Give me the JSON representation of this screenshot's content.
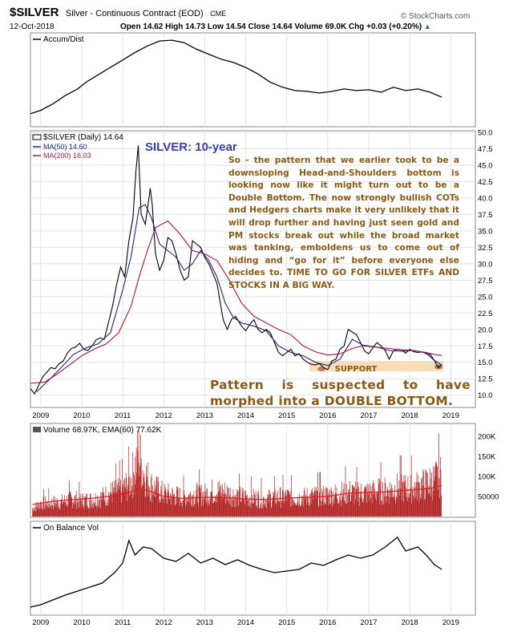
{
  "header": {
    "symbol": "$SILVER",
    "name": "Silver - Continuous Contract (EOD)",
    "exchange": "CME",
    "date": "12-Oct-2018",
    "quote": "Open 14.62  High 14.73  Low 14.54  Close 14.64  Volume 69.0K  Chg +0.03 (+0.20%)",
    "quote_arrow": "▲",
    "brand": "© StockCharts.com"
  },
  "annotations": {
    "title": "SILVER: 10-year",
    "commentary": "So - the pattern that we earlier took to be a downsloping Head-and-Shoulders bottom is looking now like it might turn out to be a Double Bottom. The now strongly bullish COTs and Hedgers charts make it very unlikely that it will drop further and having just seen gold and PM stocks break out while the broad market was tanking, emboldens us to come out of hiding and “go for it” before everyone else decides to. TIME TO GO FOR SILVER ETFs AND STOCKS IN A BIG WAY.",
    "support_label": "SUPPORT",
    "pattern_text": "Pattern is suspected to have morphed into a DOUBLE BOTTOM."
  },
  "colors": {
    "price": "#000000",
    "ma50": "#1a237e",
    "ma200": "#b0123a",
    "volume_bar": "#b22222",
    "volume_ema": "#e31a1c",
    "support_band": "#f7deb8",
    "annotation_text": "#8a5a14",
    "title_text": "#3b3fa8",
    "grid": "#e3e3e3",
    "panel_border": "#888888"
  },
  "chart_data": [
    {
      "panel": "accum-dist",
      "type": "line",
      "label": "Accum/Dist",
      "x": [
        2008.75,
        2009.0,
        2009.3,
        2009.6,
        2009.9,
        2010.1,
        2010.4,
        2010.7,
        2011.0,
        2011.3,
        2011.6,
        2011.9,
        2012.2,
        2012.5,
        2012.8,
        2013.1,
        2013.4,
        2013.7,
        2014.0,
        2014.3,
        2014.6,
        2014.9,
        2015.2,
        2015.5,
        2015.8,
        2016.1,
        2016.4,
        2016.7,
        2017.0,
        2017.3,
        2017.6,
        2017.9,
        2018.2,
        2018.5,
        2018.78
      ],
      "values": [
        8,
        12,
        20,
        30,
        38,
        46,
        55,
        64,
        73,
        82,
        90,
        96,
        97,
        94,
        86,
        80,
        74,
        70,
        64,
        56,
        46,
        40,
        36,
        35,
        33,
        35,
        38,
        36,
        37,
        34,
        40,
        36,
        38,
        34,
        28
      ]
    },
    {
      "panel": "price",
      "type": "line",
      "label": "$SILVER (Daily) 14.64",
      "ylim": [
        8.5,
        50
      ],
      "yticks": [
        10.0,
        12.5,
        15.0,
        17.5,
        20.0,
        22.5,
        25.0,
        27.5,
        30.0,
        32.5,
        35.0,
        37.5,
        40.0,
        42.5,
        45.0,
        47.5,
        50.0
      ],
      "xticks": [
        "2009",
        "2010",
        "2011",
        "2012",
        "2013",
        "2014",
        "2015",
        "2016",
        "2017",
        "2018",
        "2019"
      ],
      "support_zone": [
        13.6,
        15.2
      ],
      "series": [
        {
          "name": "$SILVER (Daily) 14.64",
          "x": [
            2008.75,
            2008.85,
            2008.95,
            2009.05,
            2009.15,
            2009.25,
            2009.35,
            2009.45,
            2009.55,
            2009.65,
            2009.75,
            2009.85,
            2009.95,
            2010.05,
            2010.15,
            2010.25,
            2010.35,
            2010.45,
            2010.55,
            2010.65,
            2010.75,
            2010.85,
            2010.95,
            2011.05,
            2011.15,
            2011.25,
            2011.32,
            2011.38,
            2011.45,
            2011.55,
            2011.62,
            2011.67,
            2011.72,
            2011.8,
            2011.9,
            2012.0,
            2012.1,
            2012.2,
            2012.3,
            2012.4,
            2012.5,
            2012.6,
            2012.7,
            2012.8,
            2012.9,
            2013.0,
            2013.1,
            2013.2,
            2013.3,
            2013.45,
            2013.55,
            2013.65,
            2013.75,
            2013.9,
            2014.0,
            2014.1,
            2014.2,
            2014.3,
            2014.4,
            2014.5,
            2014.6,
            2014.7,
            2014.8,
            2014.9,
            2015.0,
            2015.1,
            2015.2,
            2015.3,
            2015.4,
            2015.5,
            2015.6,
            2015.7,
            2015.8,
            2015.9,
            2016.0,
            2016.1,
            2016.2,
            2016.3,
            2016.4,
            2016.5,
            2016.6,
            2016.7,
            2016.8,
            2016.9,
            2017.0,
            2017.1,
            2017.2,
            2017.3,
            2017.4,
            2017.5,
            2017.6,
            2017.7,
            2017.8,
            2017.9,
            2018.0,
            2018.1,
            2018.2,
            2018.3,
            2018.4,
            2018.5,
            2018.6,
            2018.65,
            2018.7,
            2018.78
          ],
          "values": [
            11.0,
            10.2,
            11.5,
            12.8,
            13.5,
            14.2,
            14.0,
            14.8,
            15.2,
            16.4,
            17.1,
            17.3,
            17.9,
            17.0,
            16.8,
            17.5,
            18.4,
            18.7,
            18.5,
            21.0,
            23.5,
            26.8,
            29.5,
            28.0,
            33.5,
            37.0,
            44.0,
            48.0,
            37.5,
            36.0,
            39.0,
            41.5,
            39.0,
            31.5,
            29.0,
            30.5,
            34.0,
            33.5,
            31.5,
            29.0,
            27.5,
            28.0,
            33.5,
            33.0,
            32.5,
            31.0,
            30.0,
            28.5,
            27.0,
            21.5,
            20.0,
            21.5,
            22.0,
            20.5,
            19.8,
            20.8,
            21.5,
            20.0,
            19.5,
            20.0,
            19.5,
            18.0,
            16.5,
            16.0,
            16.5,
            17.0,
            16.0,
            16.3,
            15.5,
            15.0,
            14.7,
            14.6,
            14.8,
            14.2,
            13.9,
            15.2,
            15.5,
            17.0,
            17.5,
            20.0,
            19.6,
            19.2,
            18.0,
            16.7,
            16.3,
            17.2,
            18.0,
            17.5,
            16.8,
            15.5,
            16.7,
            17.0,
            16.9,
            16.4,
            17.0,
            16.6,
            16.5,
            16.6,
            16.3,
            16.2,
            15.3,
            14.7,
            14.2,
            14.64
          ]
        },
        {
          "name": "MA(50) 14.60",
          "x": [
            2008.9,
            2009.2,
            2009.5,
            2009.8,
            2010.1,
            2010.4,
            2010.7,
            2011.0,
            2011.2,
            2011.4,
            2011.55,
            2011.7,
            2011.9,
            2012.1,
            2012.3,
            2012.5,
            2012.7,
            2012.9,
            2013.1,
            2013.3,
            2013.5,
            2013.7,
            2013.9,
            2014.2,
            2014.5,
            2014.8,
            2015.1,
            2015.4,
            2015.7,
            2016.0,
            2016.3,
            2016.6,
            2016.9,
            2017.2,
            2017.5,
            2017.8,
            2018.1,
            2018.4,
            2018.6,
            2018.78
          ],
          "values": [
            10.5,
            12.3,
            14.2,
            16.2,
            17.2,
            17.8,
            19.5,
            26.0,
            31.0,
            38.5,
            39.0,
            37.0,
            33.0,
            32.0,
            31.0,
            29.0,
            30.0,
            32.0,
            30.5,
            28.0,
            24.0,
            21.8,
            21.0,
            20.5,
            19.8,
            17.5,
            16.5,
            16.0,
            15.0,
            14.5,
            15.5,
            18.5,
            17.5,
            17.3,
            16.8,
            16.7,
            16.8,
            16.4,
            15.3,
            14.6
          ]
        },
        {
          "name": "MA(200) 16.03",
          "x": [
            2008.75,
            2009.1,
            2009.4,
            2009.7,
            2010.0,
            2010.3,
            2010.6,
            2010.9,
            2011.2,
            2011.4,
            2011.6,
            2011.8,
            2012.1,
            2012.4,
            2012.7,
            2013.0,
            2013.3,
            2013.6,
            2013.9,
            2014.2,
            2014.5,
            2014.8,
            2015.1,
            2015.4,
            2015.7,
            2016.0,
            2016.3,
            2016.6,
            2016.9,
            2017.2,
            2017.5,
            2017.8,
            2018.1,
            2018.4,
            2018.6,
            2018.78
          ],
          "values": [
            11.8,
            12.0,
            13.2,
            14.6,
            16.0,
            17.0,
            17.8,
            19.5,
            23.5,
            28.0,
            32.0,
            35.5,
            36.5,
            34.5,
            32.0,
            31.5,
            30.5,
            27.5,
            24.0,
            22.0,
            21.0,
            20.0,
            19.2,
            17.5,
            16.6,
            16.1,
            16.3,
            17.1,
            17.6,
            17.3,
            17.1,
            16.9,
            16.8,
            16.5,
            16.2,
            16.03
          ]
        }
      ]
    },
    {
      "panel": "volume",
      "type": "bar",
      "label": "Volume 68.97K, EMA(60) 77.62K",
      "yticks": [
        "50000",
        "100K",
        "150K",
        "200K"
      ],
      "ylim": [
        0,
        220000
      ],
      "x": [
        2008.8,
        2009.0,
        2009.25,
        2009.5,
        2009.75,
        2010.0,
        2010.25,
        2010.5,
        2010.75,
        2011.0,
        2011.2,
        2011.4,
        2011.5,
        2011.7,
        2012.0,
        2012.25,
        2012.5,
        2012.75,
        2013.0,
        2013.25,
        2013.5,
        2013.75,
        2014.0,
        2014.25,
        2014.5,
        2014.75,
        2015.0,
        2015.25,
        2015.5,
        2015.75,
        2016.0,
        2016.25,
        2016.5,
        2016.75,
        2017.0,
        2017.25,
        2017.5,
        2017.75,
        2018.0,
        2018.25,
        2018.5,
        2018.75
      ],
      "values": [
        25000,
        40000,
        42000,
        45000,
        55000,
        50000,
        52000,
        60000,
        75000,
        85000,
        110000,
        200000,
        140000,
        95000,
        70000,
        65000,
        60000,
        70000,
        68000,
        80000,
        75000,
        65000,
        60000,
        58000,
        55000,
        60000,
        62000,
        58000,
        60000,
        65000,
        66000,
        70000,
        75000,
        72000,
        74000,
        80000,
        82000,
        90000,
        88000,
        95000,
        105000,
        125000
      ],
      "ema_x": [
        2008.8,
        2009.3,
        2009.8,
        2010.3,
        2010.8,
        2011.1,
        2011.4,
        2011.7,
        2012.0,
        2012.5,
        2013.0,
        2013.5,
        2014.0,
        2014.5,
        2015.0,
        2015.5,
        2016.0,
        2016.5,
        2017.0,
        2017.5,
        2018.0,
        2018.5,
        2018.78
      ],
      "ema_values": [
        30000,
        38000,
        42000,
        46000,
        52000,
        58000,
        70000,
        62000,
        50000,
        45000,
        48000,
        47000,
        44000,
        42000,
        46000,
        48000,
        50000,
        58000,
        60000,
        62000,
        66000,
        70000,
        77620
      ]
    },
    {
      "panel": "on-balance-volume",
      "type": "line",
      "label": "On Balance Vol",
      "xticks": [
        "2009",
        "2010",
        "2011",
        "2012",
        "2013",
        "2014",
        "2015",
        "2016",
        "2017",
        "2018",
        "2019"
      ],
      "x": [
        2008.75,
        2009.0,
        2009.3,
        2009.6,
        2009.9,
        2010.2,
        2010.5,
        2010.8,
        2011.0,
        2011.15,
        2011.3,
        2011.5,
        2011.7,
        2012.0,
        2012.3,
        2012.6,
        2012.9,
        2013.2,
        2013.5,
        2013.8,
        2014.1,
        2014.4,
        2014.7,
        2015.0,
        2015.3,
        2015.6,
        2015.9,
        2016.2,
        2016.5,
        2016.8,
        2017.1,
        2017.4,
        2017.7,
        2017.9,
        2018.2,
        2018.4,
        2018.6,
        2018.78
      ],
      "values": [
        5,
        8,
        14,
        20,
        25,
        30,
        35,
        48,
        60,
        88,
        70,
        80,
        78,
        66,
        62,
        72,
        60,
        66,
        58,
        64,
        57,
        52,
        48,
        50,
        52,
        60,
        57,
        64,
        70,
        66,
        70,
        80,
        92,
        75,
        80,
        70,
        58,
        52
      ]
    }
  ]
}
